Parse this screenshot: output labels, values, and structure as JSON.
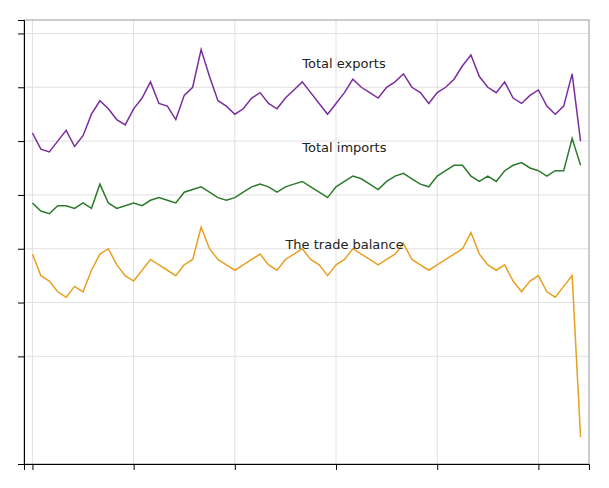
{
  "chart_data": {
    "type": "line",
    "x": [
      0,
      1,
      2,
      3,
      4,
      5,
      6,
      7,
      8,
      9,
      10,
      11,
      12,
      13,
      14,
      15,
      16,
      17,
      18,
      19,
      20,
      21,
      22,
      23,
      24,
      25,
      26,
      27,
      28,
      29,
      30,
      31,
      32,
      33,
      34,
      35,
      36,
      37,
      38,
      39,
      40,
      41,
      42,
      43,
      44,
      45,
      46,
      47,
      48,
      49,
      50,
      51,
      52,
      53,
      54,
      55,
      56,
      57,
      58,
      59,
      60,
      61,
      62,
      63,
      64,
      65
    ],
    "series": [
      {
        "color": "#7b2d9e",
        "values": [
          63,
          57,
          56,
          60,
          64,
          58,
          62,
          70,
          75,
          72,
          68,
          66,
          72,
          76,
          82,
          74,
          73,
          68,
          77,
          80,
          94,
          84,
          75,
          73,
          70,
          72,
          76,
          78,
          74,
          72,
          76,
          79,
          82,
          78,
          74,
          70,
          74,
          78,
          83,
          80,
          78,
          76,
          80,
          82,
          85,
          80,
          78,
          74,
          78,
          80,
          83,
          88,
          92,
          84,
          80,
          78,
          82,
          76,
          74,
          77,
          79,
          73,
          70,
          73,
          85,
          60
        ]
      },
      {
        "color": "#2d7a2d",
        "values": [
          37,
          34,
          33,
          36,
          36,
          35,
          37,
          35,
          44,
          37,
          35,
          36,
          37,
          36,
          38,
          39,
          38,
          37,
          41,
          42,
          43,
          41,
          39,
          38,
          39,
          41,
          43,
          44,
          43,
          41,
          43,
          44,
          45,
          43,
          41,
          39,
          43,
          45,
          47,
          46,
          44,
          42,
          45,
          47,
          48,
          46,
          44,
          43,
          47,
          49,
          51,
          51,
          47,
          45,
          47,
          45,
          49,
          51,
          52,
          50,
          49,
          47,
          49,
          49,
          61,
          51
        ]
      },
      {
        "color": "#e8a020",
        "values": [
          18,
          10,
          8,
          4,
          2,
          6,
          4,
          12,
          18,
          20,
          14,
          10,
          8,
          12,
          16,
          14,
          12,
          10,
          14,
          16,
          28,
          20,
          16,
          14,
          12,
          14,
          16,
          18,
          14,
          12,
          16,
          18,
          20,
          16,
          14,
          10,
          14,
          16,
          20,
          18,
          16,
          14,
          16,
          18,
          22,
          16,
          14,
          12,
          14,
          16,
          18,
          20,
          26,
          18,
          14,
          12,
          14,
          8,
          4,
          8,
          10,
          4,
          2,
          6,
          10,
          -50
        ]
      }
    ],
    "annotations": [
      {
        "text": "Total exports",
        "x": 32,
        "y": 87
      },
      {
        "text": "Total imports",
        "x": 32,
        "y": 56
      },
      {
        "text": "The trade balance",
        "x": 30,
        "y": 20
      }
    ],
    "xlim": [
      -1,
      66
    ],
    "xticks": [
      0,
      12,
      24,
      36,
      48,
      60
    ],
    "ylim": [
      -60,
      105
    ],
    "yticks": [
      -20,
      0,
      20,
      40,
      60,
      80,
      100
    ],
    "grid": true,
    "tick_labels": false
  }
}
